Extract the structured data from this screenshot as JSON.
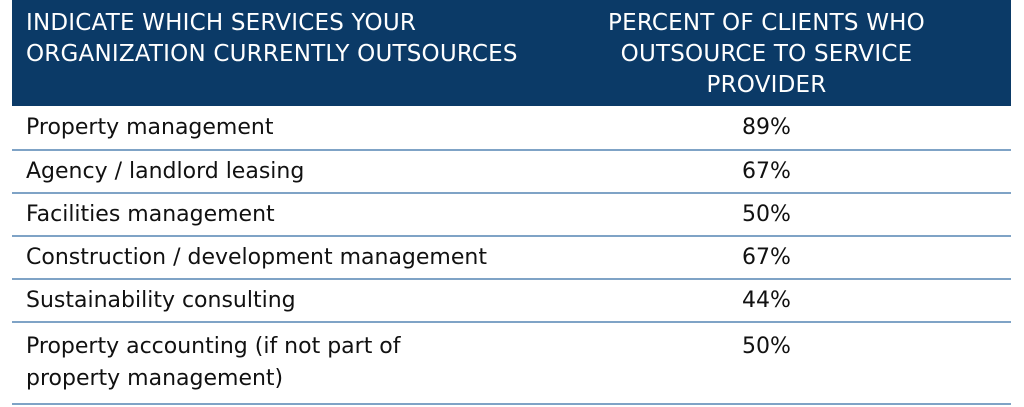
{
  "header": {
    "left_title": "INDICATE WHICH SERVICES YOUR ORGANIZATION CURRENTLY OUTSOURCES",
    "right_title": "PERCENT OF CLIENTS WHO OUTSOURCE TO SERVICE PROVIDER"
  },
  "rows": [
    {
      "label": "Property management",
      "value": "89%"
    },
    {
      "label": "Agency / landlord leasing",
      "value": "67%"
    },
    {
      "label": "Facilities management",
      "value": "50%"
    },
    {
      "label": "Construction / development management",
      "value": "67%"
    },
    {
      "label": "Sustainability consulting",
      "value": "44%"
    },
    {
      "label": "Property accounting (if not part of property management)",
      "value": "50%"
    }
  ],
  "colors": {
    "header_bg": "#0b3a67",
    "divider": "#7fa3c6"
  }
}
